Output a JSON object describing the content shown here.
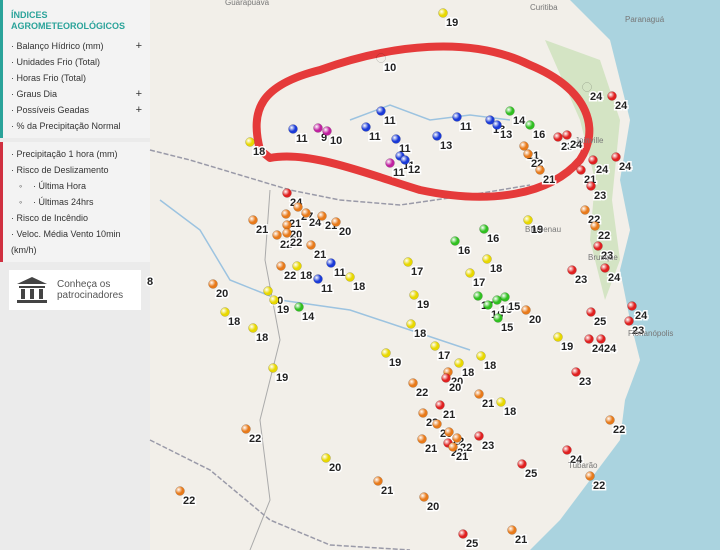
{
  "sidebar": {
    "title": "ÍNDICES AGROMETEOROLÓGICOS",
    "group1": [
      {
        "label": "· Balanço Hídrico (mm)",
        "toggle": "+"
      },
      {
        "label": "· Unidades Frio (Total)"
      },
      {
        "label": "· Horas Frio (Total)"
      },
      {
        "label": "· Graus Dia",
        "toggle": "+"
      },
      {
        "label": "· Possíveis Geadas",
        "toggle": "+"
      },
      {
        "label": "· % da Precipitação Normal"
      }
    ],
    "group2": [
      {
        "label": "· Precipitação 1 hora (mm)"
      },
      {
        "label": "· Risco de Deslizamento"
      },
      {
        "label": "· Última Hora",
        "sub": true
      },
      {
        "label": "· Últimas 24hrs",
        "sub": true
      },
      {
        "label": "· Risco de Incêndio"
      },
      {
        "label": "· Veloc. Média Vento 10min (km/h)"
      }
    ],
    "sponsors": "Conheça os patrocinadores"
  },
  "map": {
    "places": [
      "Guarapuava",
      "Curitiba",
      "Paranaguá",
      "Joinville",
      "Blumenau",
      "Brusque",
      "Florianópolis",
      "Tubarão"
    ],
    "stations": [
      {
        "value": 19,
        "color": "#e8d800"
      },
      {
        "value": 10,
        "color": "#c020a0"
      },
      {
        "value": 24,
        "color": "#e02020"
      },
      {
        "value": 24,
        "color": "#e02020"
      },
      {
        "value": 11,
        "color": "#1a3ad8"
      },
      {
        "value": 9,
        "color": "#c020a0"
      },
      {
        "value": 10,
        "color": "#c020a0"
      },
      {
        "value": 18,
        "color": "#e8d800"
      },
      {
        "value": 11,
        "color": "#1a3ad8"
      },
      {
        "value": 11,
        "color": "#1a3ad8"
      },
      {
        "value": 11,
        "color": "#1a3ad8"
      },
      {
        "value": 14,
        "color": "#30c020"
      },
      {
        "value": 13,
        "color": "#1a3ad8"
      },
      {
        "value": 13,
        "color": "#1a3ad8"
      },
      {
        "value": 16,
        "color": "#30c020"
      },
      {
        "value": 13,
        "color": "#1a3ad8"
      },
      {
        "value": 11,
        "color": "#1a3ad8"
      },
      {
        "value": 11,
        "color": "#1a3ad8"
      },
      {
        "value": 12,
        "color": "#1a3ad8"
      },
      {
        "value": 11,
        "color": "#c020a0"
      },
      {
        "value": 21,
        "color": "#e87a1a"
      },
      {
        "value": 22,
        "color": "#e87a1a"
      },
      {
        "value": 23,
        "color": "#e02020"
      },
      {
        "value": 24,
        "color": "#e02020"
      },
      {
        "value": 21,
        "color": "#e87a1a"
      },
      {
        "value": 24,
        "color": "#e02020"
      },
      {
        "value": 24,
        "color": "#e02020"
      },
      {
        "value": 21,
        "color": "#e02020"
      },
      {
        "value": 23,
        "color": "#e02020"
      },
      {
        "value": 24,
        "color": "#e02020"
      },
      {
        "value": 27,
        "color": "#e87a1a"
      },
      {
        "value": 24,
        "color": "#e87a1a"
      },
      {
        "value": 21,
        "color": "#e87a1a"
      },
      {
        "value": 20,
        "color": "#e87a1a"
      },
      {
        "value": 21,
        "color": "#e87a1a"
      },
      {
        "value": 21,
        "color": "#e87a1a"
      },
      {
        "value": 20,
        "color": "#e87a1a"
      },
      {
        "value": 22,
        "color": "#e87a1a"
      },
      {
        "value": 22,
        "color": "#e87a1a"
      },
      {
        "value": 21,
        "color": "#e87a1a"
      },
      {
        "value": 11,
        "color": "#1a3ad8"
      },
      {
        "value": 22,
        "color": "#e87a1a"
      },
      {
        "value": 18,
        "color": "#e8d800"
      },
      {
        "value": 11,
        "color": "#1a3ad8"
      },
      {
        "value": 18,
        "color": "#e8d800"
      },
      {
        "value": 20,
        "color": "#e87a1a"
      },
      {
        "value": 20,
        "color": "#e8d800"
      },
      {
        "value": 19,
        "color": "#e8d800"
      },
      {
        "value": 18,
        "color": "#e8d800"
      },
      {
        "value": 14,
        "color": "#30c020"
      },
      {
        "value": 18,
        "color": "#e8d800"
      },
      {
        "value": 19,
        "color": "#e8d800"
      },
      {
        "value": 22,
        "color": "#e87a1a"
      },
      {
        "value": 22,
        "color": "#e87a1a"
      },
      {
        "value": 20,
        "color": "#e8d800"
      },
      {
        "value": 21,
        "color": "#e87a1a"
      },
      {
        "value": 20,
        "color": "#e87a1a"
      },
      {
        "value": 25,
        "color": "#e02020"
      },
      {
        "value": 21,
        "color": "#e87a1a"
      },
      {
        "value": 16,
        "color": "#30c020"
      },
      {
        "value": 16,
        "color": "#30c020"
      },
      {
        "value": 19,
        "color": "#e8d800"
      },
      {
        "value": 18,
        "color": "#e8d800"
      },
      {
        "value": 17,
        "color": "#e8d800"
      },
      {
        "value": 17,
        "color": "#e8d800"
      },
      {
        "value": 22,
        "color": "#e87a1a"
      },
      {
        "value": 22,
        "color": "#e87a1a"
      },
      {
        "value": 23,
        "color": "#e02020"
      },
      {
        "value": 24,
        "color": "#e02020"
      },
      {
        "value": 23,
        "color": "#e02020"
      },
      {
        "value": 19,
        "color": "#e8d800"
      },
      {
        "value": 17,
        "color": "#30c020"
      },
      {
        "value": 16,
        "color": "#30c020"
      },
      {
        "value": 15,
        "color": "#30c020"
      },
      {
        "value": 15,
        "color": "#30c020"
      },
      {
        "value": 20,
        "color": "#e87a1a"
      },
      {
        "value": 15,
        "color": "#30c020"
      },
      {
        "value": 18,
        "color": "#e8d800"
      },
      {
        "value": 25,
        "color": "#e02020"
      },
      {
        "value": 24,
        "color": "#e02020"
      },
      {
        "value": 23,
        "color": "#e02020"
      },
      {
        "value": 19,
        "color": "#e8d800"
      },
      {
        "value": 24,
        "color": "#e02020"
      },
      {
        "value": 24,
        "color": "#e02020"
      },
      {
        "value": 19,
        "color": "#e8d800"
      },
      {
        "value": 17,
        "color": "#e8d800"
      },
      {
        "value": 18,
        "color": "#e8d800"
      },
      {
        "value": 18,
        "color": "#e8d800"
      },
      {
        "value": 20,
        "color": "#e87a1a"
      },
      {
        "value": 20,
        "color": "#e02020"
      },
      {
        "value": 22,
        "color": "#e87a1a"
      },
      {
        "value": 23,
        "color": "#e02020"
      },
      {
        "value": 21,
        "color": "#e87a1a"
      },
      {
        "value": 18,
        "color": "#e8d800"
      },
      {
        "value": 23,
        "color": "#e87a1a"
      },
      {
        "value": 21,
        "color": "#e02020"
      },
      {
        "value": 20,
        "color": "#e87a1a"
      },
      {
        "value": 22,
        "color": "#e87a1a"
      },
      {
        "value": 21,
        "color": "#e87a1a"
      },
      {
        "value": 22,
        "color": "#e87a1a"
      },
      {
        "value": 23,
        "color": "#e02020"
      },
      {
        "value": 21,
        "color": "#e87a1a"
      },
      {
        "value": 23,
        "color": "#e02020"
      },
      {
        "value": 22,
        "color": "#e87a1a"
      },
      {
        "value": 24,
        "color": "#e02020"
      },
      {
        "value": 25,
        "color": "#e02020"
      },
      {
        "value": 22,
        "color": "#e87a1a"
      },
      {
        "value": 8,
        "color": "#e8d800"
      }
    ]
  }
}
